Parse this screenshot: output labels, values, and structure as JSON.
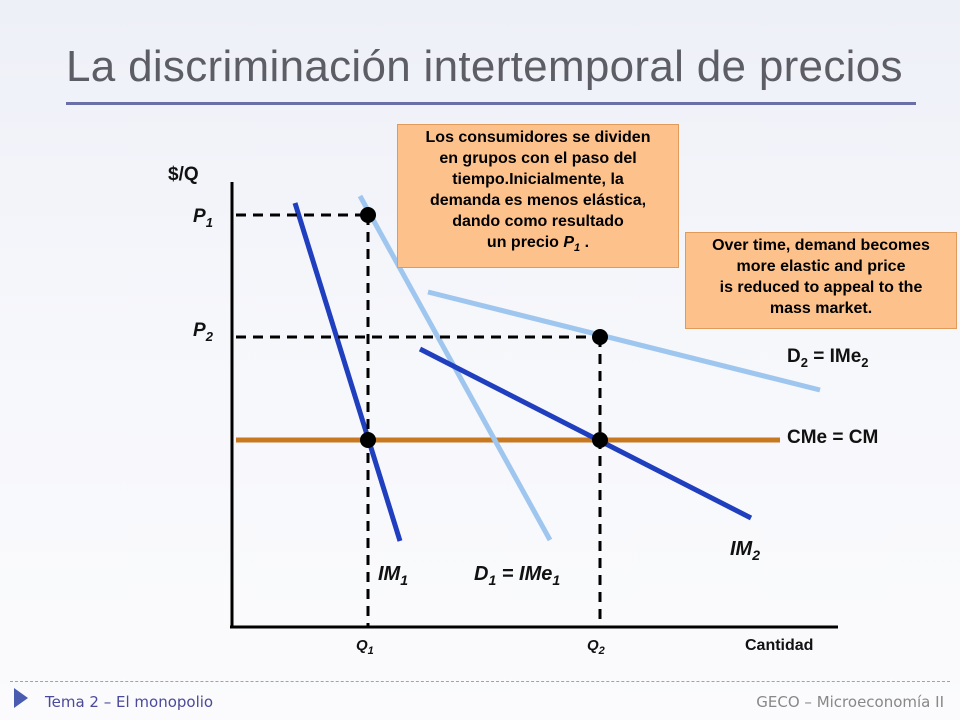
{
  "title": "La discriminación intertemporal de precios",
  "axes": {
    "y_label": "$/Q",
    "x_label": "Cantidad"
  },
  "prices": [
    {
      "sym": "P",
      "sub": "1"
    },
    {
      "sym": "P",
      "sub": "2"
    }
  ],
  "quantities": [
    {
      "sym": "Q",
      "sub": "1"
    },
    {
      "sym": "Q",
      "sub": "2"
    }
  ],
  "curves": {
    "im1": {
      "sym": "IM",
      "sub": "1",
      "color": "#1f3fbf"
    },
    "d1": {
      "lhs": "D",
      "lhs_sub": "1",
      "mid": " = IMe",
      "rhs_sub": "1",
      "color": "#9fc6ee"
    },
    "im2": {
      "sym": "IM",
      "sub": "2",
      "color": "#1f3fbf"
    },
    "d2": {
      "lhs": "D",
      "lhs_sub": "2",
      "mid": " = IMe",
      "rhs_sub": "2",
      "color": "#9fc6ee"
    },
    "cost": {
      "label": "CMe = CM",
      "color": "#c8781e"
    }
  },
  "note_spanish": {
    "lines": "Los consumidores se dividen\nen grupos con el paso del\ntiempo.Inicialmente, la\ndemanda es menos elástica,\ndando como resultado",
    "last_prefix": "un precio ",
    "last_sym": "P",
    "last_sub": "1",
    "last_suffix": " ."
  },
  "note_english": "Over time, demand becomes\nmore elastic and  price\nis reduced to appeal to the\nmass market.",
  "footer": {
    "left": "Tema 2 – El monopolio",
    "right": "GECO – Microeconomía II"
  }
}
